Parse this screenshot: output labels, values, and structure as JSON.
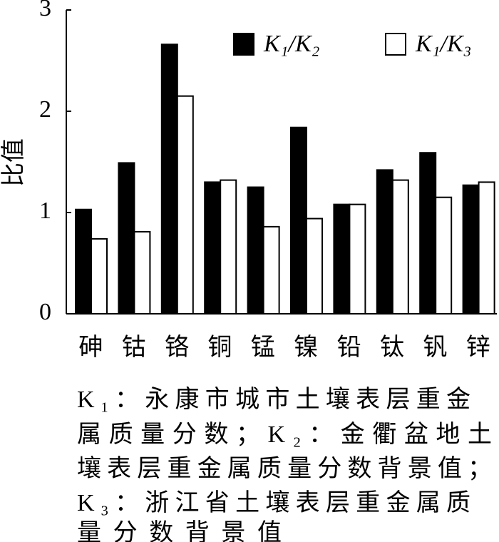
{
  "chart_data": {
    "type": "bar",
    "y_label": "比值",
    "categories": [
      "砷",
      "钴",
      "铬",
      "铜",
      "锰",
      "镍",
      "铅",
      "钛",
      "钒",
      "锌"
    ],
    "series": [
      {
        "name": "K₁/K₂",
        "color": "#000000",
        "values": [
          1.03,
          1.49,
          2.66,
          1.3,
          1.25,
          1.84,
          1.08,
          1.42,
          1.59,
          1.27
        ]
      },
      {
        "name": "K₁/K₃",
        "color": "#ffffff",
        "values": [
          0.74,
          0.81,
          2.15,
          1.32,
          0.86,
          0.94,
          1.08,
          1.32,
          1.15,
          1.3
        ]
      }
    ],
    "ylim": [
      0,
      3
    ],
    "yticks": [
      0,
      1,
      2,
      3
    ],
    "grid": false,
    "legend": "top-right",
    "note": [
      "K₁：永康市城市土壤表层重金",
      "属质量分数；K₂：金衢盆地土",
      "壤表层重金属质量分数背景值；",
      "K₃：浙江省土壤表层重金属质",
      "量分数背景值"
    ]
  }
}
